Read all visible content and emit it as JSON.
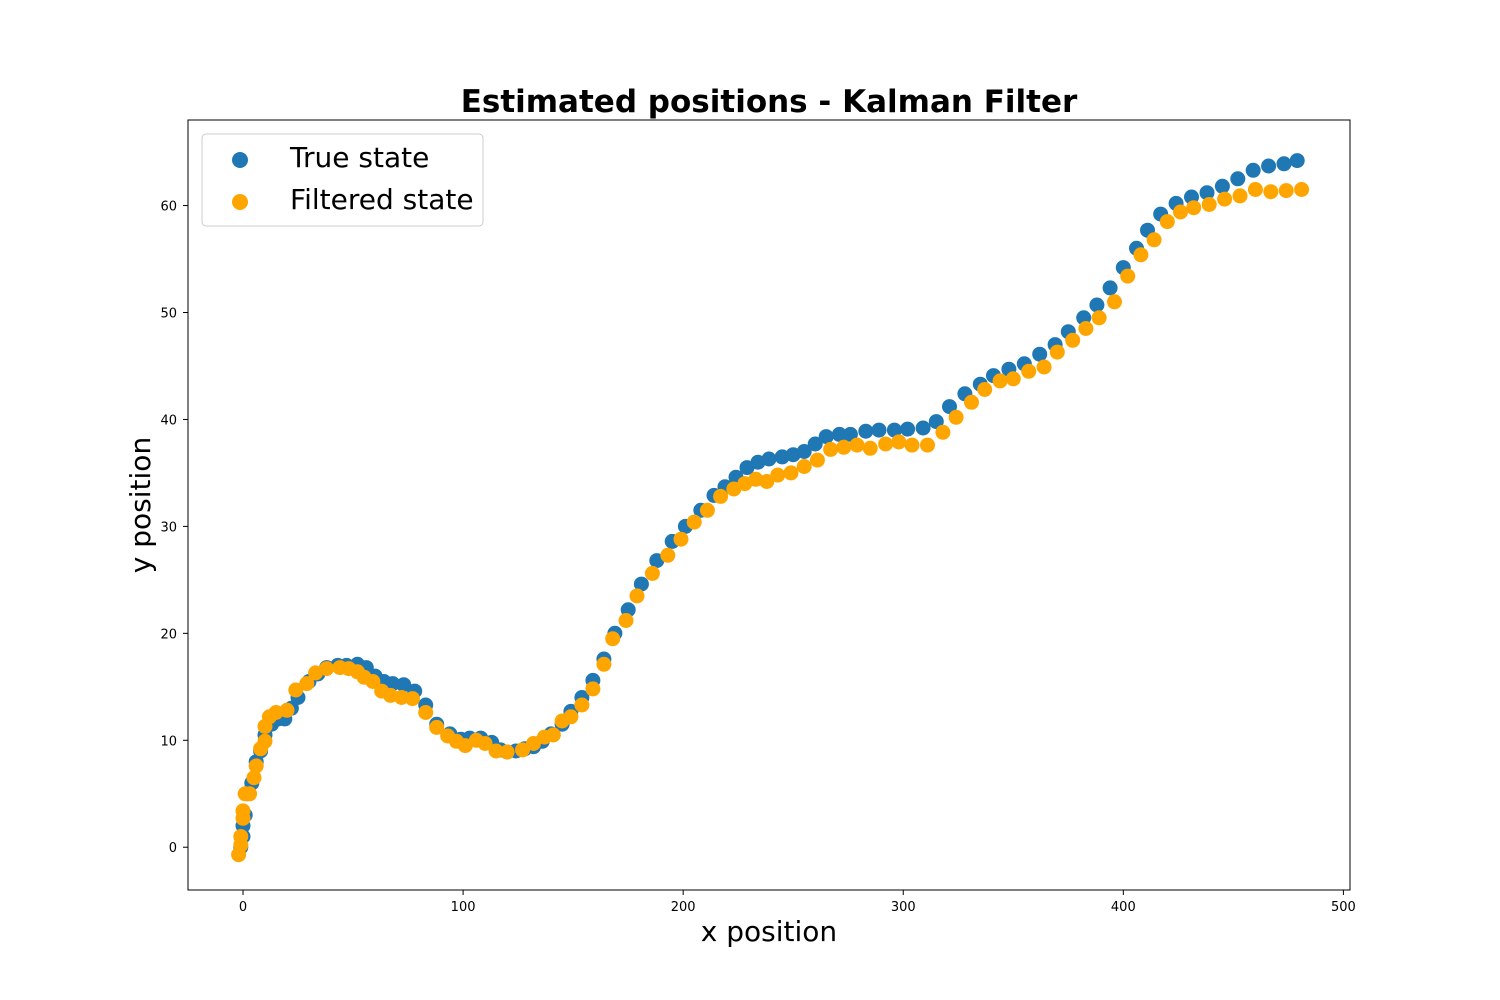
{
  "chart_data": {
    "type": "scatter",
    "title": "Estimated positions - Kalman Filter",
    "xlabel": "x position",
    "ylabel": "y position",
    "xlim": [
      -25,
      503
    ],
    "ylim": [
      -4,
      68
    ],
    "xticks": [
      0,
      100,
      200,
      300,
      400,
      500
    ],
    "yticks": [
      0,
      10,
      20,
      30,
      40,
      50,
      60
    ],
    "grid": false,
    "legend_position": "top-left",
    "series": [
      {
        "name": "True state",
        "color": "#1f77b4",
        "points": [
          [
            -1,
            0
          ],
          [
            0,
            1
          ],
          [
            0,
            2
          ],
          [
            1,
            3
          ],
          [
            2,
            5
          ],
          [
            4,
            6
          ],
          [
            6,
            8
          ],
          [
            8,
            9
          ],
          [
            10,
            10.5
          ],
          [
            13,
            11.5
          ],
          [
            16,
            12
          ],
          [
            19,
            12
          ],
          [
            22,
            13
          ],
          [
            25,
            14
          ],
          [
            30,
            15.5
          ],
          [
            34,
            16.2
          ],
          [
            38,
            16.8
          ],
          [
            43,
            17
          ],
          [
            47,
            17
          ],
          [
            52,
            17.1
          ],
          [
            56,
            16.8
          ],
          [
            60,
            16
          ],
          [
            64,
            15.5
          ],
          [
            68,
            15.3
          ],
          [
            73,
            15.2
          ],
          [
            78,
            14.6
          ],
          [
            83,
            13.3
          ],
          [
            88,
            11.5
          ],
          [
            94,
            10.6
          ],
          [
            99,
            10.1
          ],
          [
            103,
            10.2
          ],
          [
            108,
            10.2
          ],
          [
            113,
            9.8
          ],
          [
            117,
            9.1
          ],
          [
            120,
            8.9
          ],
          [
            124,
            9
          ],
          [
            128,
            9.2
          ],
          [
            132,
            9.4
          ],
          [
            136,
            9.9
          ],
          [
            140,
            10.6
          ],
          [
            145,
            11.5
          ],
          [
            149,
            12.7
          ],
          [
            154,
            14
          ],
          [
            159,
            15.6
          ],
          [
            164,
            17.6
          ],
          [
            169,
            20
          ],
          [
            175,
            22.2
          ],
          [
            181,
            24.6
          ],
          [
            188,
            26.8
          ],
          [
            195,
            28.6
          ],
          [
            201,
            30
          ],
          [
            208,
            31.5
          ],
          [
            214,
            32.9
          ],
          [
            219,
            33.7
          ],
          [
            224,
            34.6
          ],
          [
            229,
            35.5
          ],
          [
            234,
            36
          ],
          [
            239,
            36.3
          ],
          [
            245,
            36.5
          ],
          [
            250,
            36.7
          ],
          [
            255,
            37
          ],
          [
            260,
            37.7
          ],
          [
            265,
            38.4
          ],
          [
            271,
            38.6
          ],
          [
            276,
            38.6
          ],
          [
            283,
            38.9
          ],
          [
            289,
            39
          ],
          [
            296,
            39
          ],
          [
            302,
            39.1
          ],
          [
            309,
            39.2
          ],
          [
            315,
            39.8
          ],
          [
            321,
            41.2
          ],
          [
            328,
            42.4
          ],
          [
            335,
            43.3
          ],
          [
            341,
            44.1
          ],
          [
            348,
            44.7
          ],
          [
            355,
            45.2
          ],
          [
            362,
            46.1
          ],
          [
            369,
            47
          ],
          [
            375,
            48.2
          ],
          [
            382,
            49.5
          ],
          [
            388,
            50.7
          ],
          [
            394,
            52.3
          ],
          [
            400,
            54.2
          ],
          [
            406,
            56
          ],
          [
            411,
            57.7
          ],
          [
            417,
            59.2
          ],
          [
            424,
            60.2
          ],
          [
            431,
            60.8
          ],
          [
            438,
            61.2
          ],
          [
            445,
            61.8
          ],
          [
            452,
            62.5
          ],
          [
            459,
            63.3
          ],
          [
            466,
            63.7
          ],
          [
            473,
            63.9
          ],
          [
            479,
            64.2
          ]
        ]
      },
      {
        "name": "Filtered state",
        "color": "#ffa500",
        "points": [
          [
            -2,
            -0.7
          ],
          [
            -1,
            0.2
          ],
          [
            -1,
            1
          ],
          [
            0,
            2.7
          ],
          [
            0,
            3.4
          ],
          [
            1,
            5
          ],
          [
            3,
            5
          ],
          [
            5,
            6.5
          ],
          [
            6,
            7.6
          ],
          [
            8,
            9.2
          ],
          [
            10,
            9.9
          ],
          [
            10,
            11.3
          ],
          [
            12,
            12.2
          ],
          [
            15,
            12.6
          ],
          [
            20,
            12.8
          ],
          [
            24,
            14.7
          ],
          [
            29,
            15.3
          ],
          [
            33,
            16.3
          ],
          [
            38,
            16.7
          ],
          [
            44,
            16.8
          ],
          [
            48,
            16.7
          ],
          [
            52,
            16.4
          ],
          [
            55,
            15.9
          ],
          [
            59,
            15.5
          ],
          [
            63,
            14.6
          ],
          [
            67,
            14.2
          ],
          [
            72,
            14
          ],
          [
            77,
            13.9
          ],
          [
            83,
            12.6
          ],
          [
            88,
            11.2
          ],
          [
            93,
            10.4
          ],
          [
            97,
            9.9
          ],
          [
            101,
            9.5
          ],
          [
            106,
            10
          ],
          [
            110,
            9.7
          ],
          [
            115,
            9
          ],
          [
            120,
            8.9
          ],
          [
            127,
            9.1
          ],
          [
            132,
            9.7
          ],
          [
            137,
            10.3
          ],
          [
            141,
            10.5
          ],
          [
            145,
            11.8
          ],
          [
            149,
            12.2
          ],
          [
            154,
            13.3
          ],
          [
            159,
            14.8
          ],
          [
            164,
            17.1
          ],
          [
            168,
            19.5
          ],
          [
            174,
            21.2
          ],
          [
            179,
            23.5
          ],
          [
            186,
            25.6
          ],
          [
            193,
            27.3
          ],
          [
            199,
            28.8
          ],
          [
            205,
            30.4
          ],
          [
            211,
            31.5
          ],
          [
            217,
            32.8
          ],
          [
            223,
            33.5
          ],
          [
            228,
            34
          ],
          [
            233,
            34.4
          ],
          [
            238,
            34.2
          ],
          [
            243,
            34.8
          ],
          [
            249,
            35
          ],
          [
            255,
            35.6
          ],
          [
            261,
            36.2
          ],
          [
            267,
            37.2
          ],
          [
            273,
            37.4
          ],
          [
            279,
            37.6
          ],
          [
            285,
            37.3
          ],
          [
            292,
            37.7
          ],
          [
            298,
            37.9
          ],
          [
            304,
            37.6
          ],
          [
            311,
            37.6
          ],
          [
            318,
            38.8
          ],
          [
            324,
            40.2
          ],
          [
            331,
            41.6
          ],
          [
            337,
            42.8
          ],
          [
            344,
            43.6
          ],
          [
            350,
            43.8
          ],
          [
            357,
            44.5
          ],
          [
            364,
            44.9
          ],
          [
            370,
            46.3
          ],
          [
            377,
            47.4
          ],
          [
            383,
            48.5
          ],
          [
            389,
            49.5
          ],
          [
            396,
            51
          ],
          [
            402,
            53.4
          ],
          [
            408,
            55.4
          ],
          [
            414,
            56.8
          ],
          [
            420,
            58.5
          ],
          [
            426,
            59.4
          ],
          [
            432,
            59.8
          ],
          [
            439,
            60.1
          ],
          [
            446,
            60.6
          ],
          [
            453,
            60.9
          ],
          [
            460,
            61.5
          ],
          [
            467,
            61.3
          ],
          [
            474,
            61.4
          ],
          [
            481,
            61.5
          ]
        ]
      }
    ]
  }
}
